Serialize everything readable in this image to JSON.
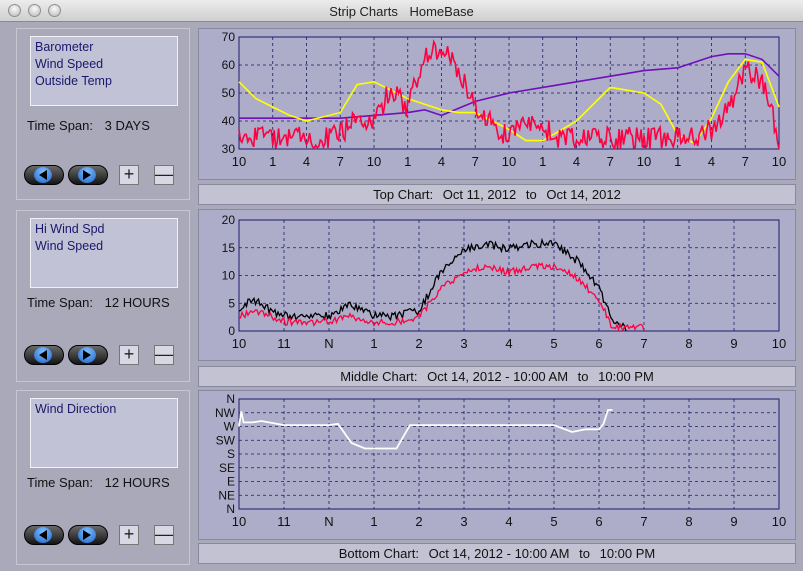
{
  "window": {
    "title": "Strip Charts",
    "subtitle": "HomeBase"
  },
  "panels": [
    {
      "legend": [
        "Barometer",
        "Wind Speed",
        "Outside Temp"
      ],
      "time_span_label": "Time Span:",
      "time_span_value": "3 DAYS"
    },
    {
      "legend": [
        "Hi Wind Spd",
        "Wind Speed"
      ],
      "time_span_label": "Time Span:",
      "time_span_value": "12 HOURS"
    },
    {
      "legend": [
        "Wind Direction"
      ],
      "time_span_label": "Time Span:",
      "time_span_value": "12 HOURS"
    }
  ],
  "controls": {
    "plus": "+",
    "minus": "—",
    "back_icon": "left-arrow-icon",
    "forward_icon": "right-arrow-icon"
  },
  "captions": [
    {
      "label": "Top Chart:",
      "start": "Oct 11, 2012",
      "sep": "to",
      "end": "Oct 14, 2012"
    },
    {
      "label": "Middle Chart:",
      "start": "Oct 14, 2012 - 10:00 AM",
      "sep": "to",
      "end": "10:00 PM"
    },
    {
      "label": "Bottom Chart:",
      "start": "Oct 14, 2012 - 10:00 AM",
      "sep": "to",
      "end": "10:00 PM"
    }
  ],
  "colors": {
    "barometer": "#7010b8",
    "wind_speed": "#ff0040",
    "outside_temp": "#ffff00",
    "hi_wind": "#000000",
    "wind_dir": "#ffffff",
    "grid": "#1a1a6a",
    "bg": "#adadca"
  },
  "chart_data": [
    {
      "type": "line",
      "x_tick_labels": [
        "10",
        "1",
        "4",
        "7",
        "10",
        "1",
        "4",
        "7",
        "10",
        "1",
        "4",
        "7",
        "10",
        "1",
        "4",
        "7",
        "10"
      ],
      "y_ticks": [
        30,
        40,
        50,
        60,
        70
      ],
      "ylim": [
        30,
        70
      ],
      "grid": true,
      "series": [
        {
          "name": "Barometer",
          "color": "#7010b8",
          "x": [
            0,
            1,
            2,
            3,
            4,
            5,
            5.5,
            6,
            7,
            8,
            9,
            10,
            11,
            11.5,
            12,
            13,
            13.5,
            14,
            14.5,
            15,
            15.5,
            16
          ],
          "values": [
            41,
            41,
            41,
            41,
            42,
            43,
            44,
            42,
            47,
            50,
            52,
            54,
            56,
            57,
            58,
            59,
            61,
            63,
            64,
            64,
            62,
            56
          ]
        },
        {
          "name": "Outside Temp",
          "color": "#ffff00",
          "x": [
            0,
            0.5,
            1,
            1.5,
            2,
            3,
            3.5,
            4,
            4.5,
            5,
            5.5,
            6,
            6.5,
            7,
            8,
            8.5,
            9,
            10,
            11,
            12,
            12.5,
            13,
            13.5,
            14,
            14.5,
            15,
            15.5,
            16
          ],
          "values": [
            54,
            48,
            45,
            42,
            40,
            43,
            53,
            54,
            51,
            48,
            46,
            44,
            43,
            43,
            37,
            33,
            33,
            40,
            52,
            50,
            46,
            35,
            32,
            41,
            54,
            62,
            61,
            45
          ]
        },
        {
          "name": "Wind Speed",
          "color": "#ff0040",
          "x": [
            0,
            1,
            2,
            2.5,
            3,
            3.5,
            4,
            4.5,
            5,
            5.5,
            6,
            6.5,
            7,
            8,
            8.5,
            9,
            9.5,
            10,
            11,
            12,
            13,
            13.5,
            14,
            14.5,
            15,
            15.5,
            16
          ],
          "values": [
            30,
            30,
            30,
            30,
            31,
            38,
            35,
            48,
            40,
            60,
            62,
            55,
            40,
            30,
            36,
            34,
            30,
            30,
            30,
            30,
            30,
            30,
            33,
            40,
            55,
            50,
            30
          ]
        }
      ]
    },
    {
      "type": "line",
      "x_tick_labels": [
        "10",
        "11",
        "N",
        "1",
        "2",
        "3",
        "4",
        "5",
        "6",
        "7",
        "8",
        "9",
        "10"
      ],
      "y_ticks": [
        0,
        5,
        10,
        15,
        20
      ],
      "ylim": [
        0,
        20
      ],
      "grid": true,
      "series": [
        {
          "name": "Hi Wind Spd",
          "color": "#000000",
          "x": [
            0,
            0.3,
            0.7,
            1,
            1.5,
            2,
            2.5,
            3,
            3.5,
            4,
            4.5,
            5,
            5.5,
            6,
            6.5,
            7,
            7.5,
            8,
            8.3,
            8.6
          ],
          "values": [
            3,
            5,
            3,
            2,
            2,
            2,
            4,
            2,
            2,
            3,
            10,
            14,
            15,
            14,
            15,
            15,
            12,
            7,
            1,
            0
          ]
        },
        {
          "name": "Wind Speed",
          "color": "#ff0040",
          "x": [
            0,
            0.3,
            0.7,
            1,
            1.5,
            2,
            2.5,
            3,
            3.5,
            4,
            4.5,
            5,
            5.5,
            6,
            6.5,
            7,
            7.5,
            8,
            8.3,
            8.6,
            9
          ],
          "values": [
            2,
            3,
            2,
            1,
            1,
            1,
            2,
            1,
            1,
            2,
            7,
            10,
            11,
            10,
            11,
            11,
            9,
            5,
            0,
            0,
            0
          ]
        }
      ]
    },
    {
      "type": "line",
      "x_tick_labels": [
        "10",
        "11",
        "N",
        "1",
        "2",
        "3",
        "4",
        "5",
        "6",
        "7",
        "8",
        "9",
        "10"
      ],
      "y_tick_labels": [
        "N",
        "NW",
        "W",
        "SW",
        "S",
        "SE",
        "E",
        "NE",
        "N"
      ],
      "grid": true,
      "series": [
        {
          "name": "Wind Direction",
          "color": "#ffffff",
          "x": [
            0,
            0.05,
            0.1,
            0.3,
            0.5,
            1,
            1.5,
            2,
            2.2,
            2.5,
            2.8,
            3,
            3.2,
            3.5,
            3.8,
            4,
            4.5,
            5,
            5.5,
            6,
            6.5,
            7,
            7.4,
            7.7,
            8,
            8.1,
            8.2,
            8.3
          ],
          "values": [
            2,
            0.9,
            1.7,
            1.7,
            1.6,
            1.9,
            1.9,
            1.9,
            1.8,
            3.2,
            3.6,
            3.6,
            3.6,
            3.6,
            1.9,
            1.9,
            1.9,
            1.9,
            1.9,
            1.9,
            1.9,
            1.9,
            2.4,
            2.2,
            2.2,
            1.8,
            0.8,
            0.8
          ]
        }
      ]
    }
  ]
}
